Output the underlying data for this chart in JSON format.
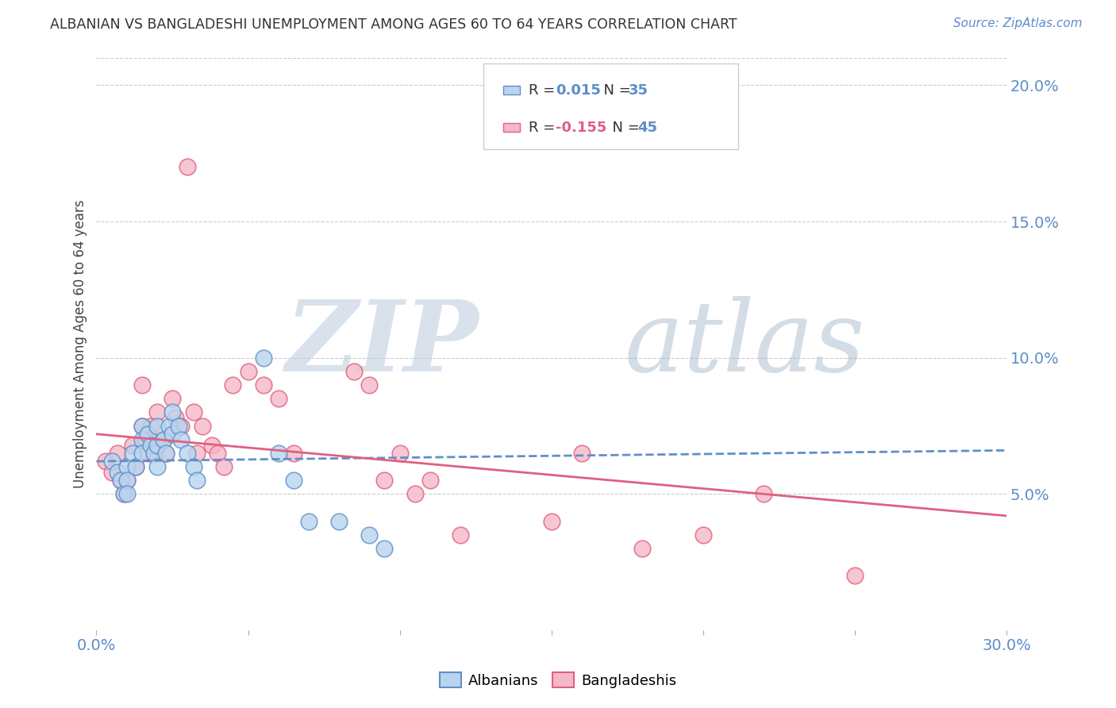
{
  "title": "ALBANIAN VS BANGLADESHI UNEMPLOYMENT AMONG AGES 60 TO 64 YEARS CORRELATION CHART",
  "source": "Source: ZipAtlas.com",
  "ylabel": "Unemployment Among Ages 60 to 64 years",
  "xmin": 0.0,
  "xmax": 0.3,
  "ymin": 0.0,
  "ymax": 0.21,
  "yticks_right": [
    0.05,
    0.1,
    0.15,
    0.2
  ],
  "ytick_labels_right": [
    "5.0%",
    "10.0%",
    "15.0%",
    "20.0%"
  ],
  "xticks": [
    0.0,
    0.05,
    0.1,
    0.15,
    0.2,
    0.25,
    0.3
  ],
  "legend_albanian_r": "R =  0.015",
  "legend_albanian_n": "N = 35",
  "legend_bangladeshi_r": "R = -0.155",
  "legend_bangladeshi_n": "N = 45",
  "color_albanian_fill": "#b8d4ee",
  "color_bangladeshi_fill": "#f5b8c8",
  "color_line_albanian": "#6090c8",
  "color_line_bangladeshi": "#e06080",
  "watermark_zip": "ZIP",
  "watermark_atlas": "atlas",
  "watermark_color": "#c8d8e8",
  "background_color": "#ffffff",
  "grid_color": "#cccccc",
  "albanian_x": [
    0.005,
    0.007,
    0.008,
    0.009,
    0.01,
    0.01,
    0.01,
    0.012,
    0.013,
    0.015,
    0.015,
    0.015,
    0.017,
    0.018,
    0.019,
    0.02,
    0.02,
    0.02,
    0.022,
    0.023,
    0.024,
    0.025,
    0.025,
    0.027,
    0.028,
    0.03,
    0.032,
    0.033,
    0.055,
    0.06,
    0.065,
    0.07,
    0.08,
    0.09,
    0.095
  ],
  "albanian_y": [
    0.062,
    0.058,
    0.055,
    0.05,
    0.06,
    0.055,
    0.05,
    0.065,
    0.06,
    0.075,
    0.07,
    0.065,
    0.072,
    0.068,
    0.065,
    0.075,
    0.068,
    0.06,
    0.07,
    0.065,
    0.075,
    0.08,
    0.072,
    0.075,
    0.07,
    0.065,
    0.06,
    0.055,
    0.1,
    0.065,
    0.055,
    0.04,
    0.04,
    0.035,
    0.03
  ],
  "bangladeshi_x": [
    0.003,
    0.005,
    0.007,
    0.008,
    0.009,
    0.01,
    0.012,
    0.013,
    0.015,
    0.015,
    0.016,
    0.017,
    0.018,
    0.02,
    0.02,
    0.022,
    0.023,
    0.025,
    0.026,
    0.028,
    0.03,
    0.032,
    0.033,
    0.035,
    0.038,
    0.04,
    0.042,
    0.045,
    0.05,
    0.055,
    0.06,
    0.065,
    0.085,
    0.09,
    0.095,
    0.1,
    0.105,
    0.11,
    0.12,
    0.15,
    0.16,
    0.18,
    0.2,
    0.22,
    0.25
  ],
  "bangladeshi_y": [
    0.062,
    0.058,
    0.065,
    0.055,
    0.05,
    0.055,
    0.068,
    0.06,
    0.09,
    0.075,
    0.07,
    0.065,
    0.075,
    0.08,
    0.068,
    0.07,
    0.065,
    0.085,
    0.078,
    0.075,
    0.17,
    0.08,
    0.065,
    0.075,
    0.068,
    0.065,
    0.06,
    0.09,
    0.095,
    0.09,
    0.085,
    0.065,
    0.095,
    0.09,
    0.055,
    0.065,
    0.05,
    0.055,
    0.035,
    0.04,
    0.065,
    0.03,
    0.035,
    0.05,
    0.02
  ],
  "alb_trend_x": [
    0.0,
    0.3
  ],
  "alb_trend_y": [
    0.062,
    0.066
  ],
  "ban_trend_x": [
    0.0,
    0.3
  ],
  "ban_trend_y": [
    0.072,
    0.042
  ]
}
